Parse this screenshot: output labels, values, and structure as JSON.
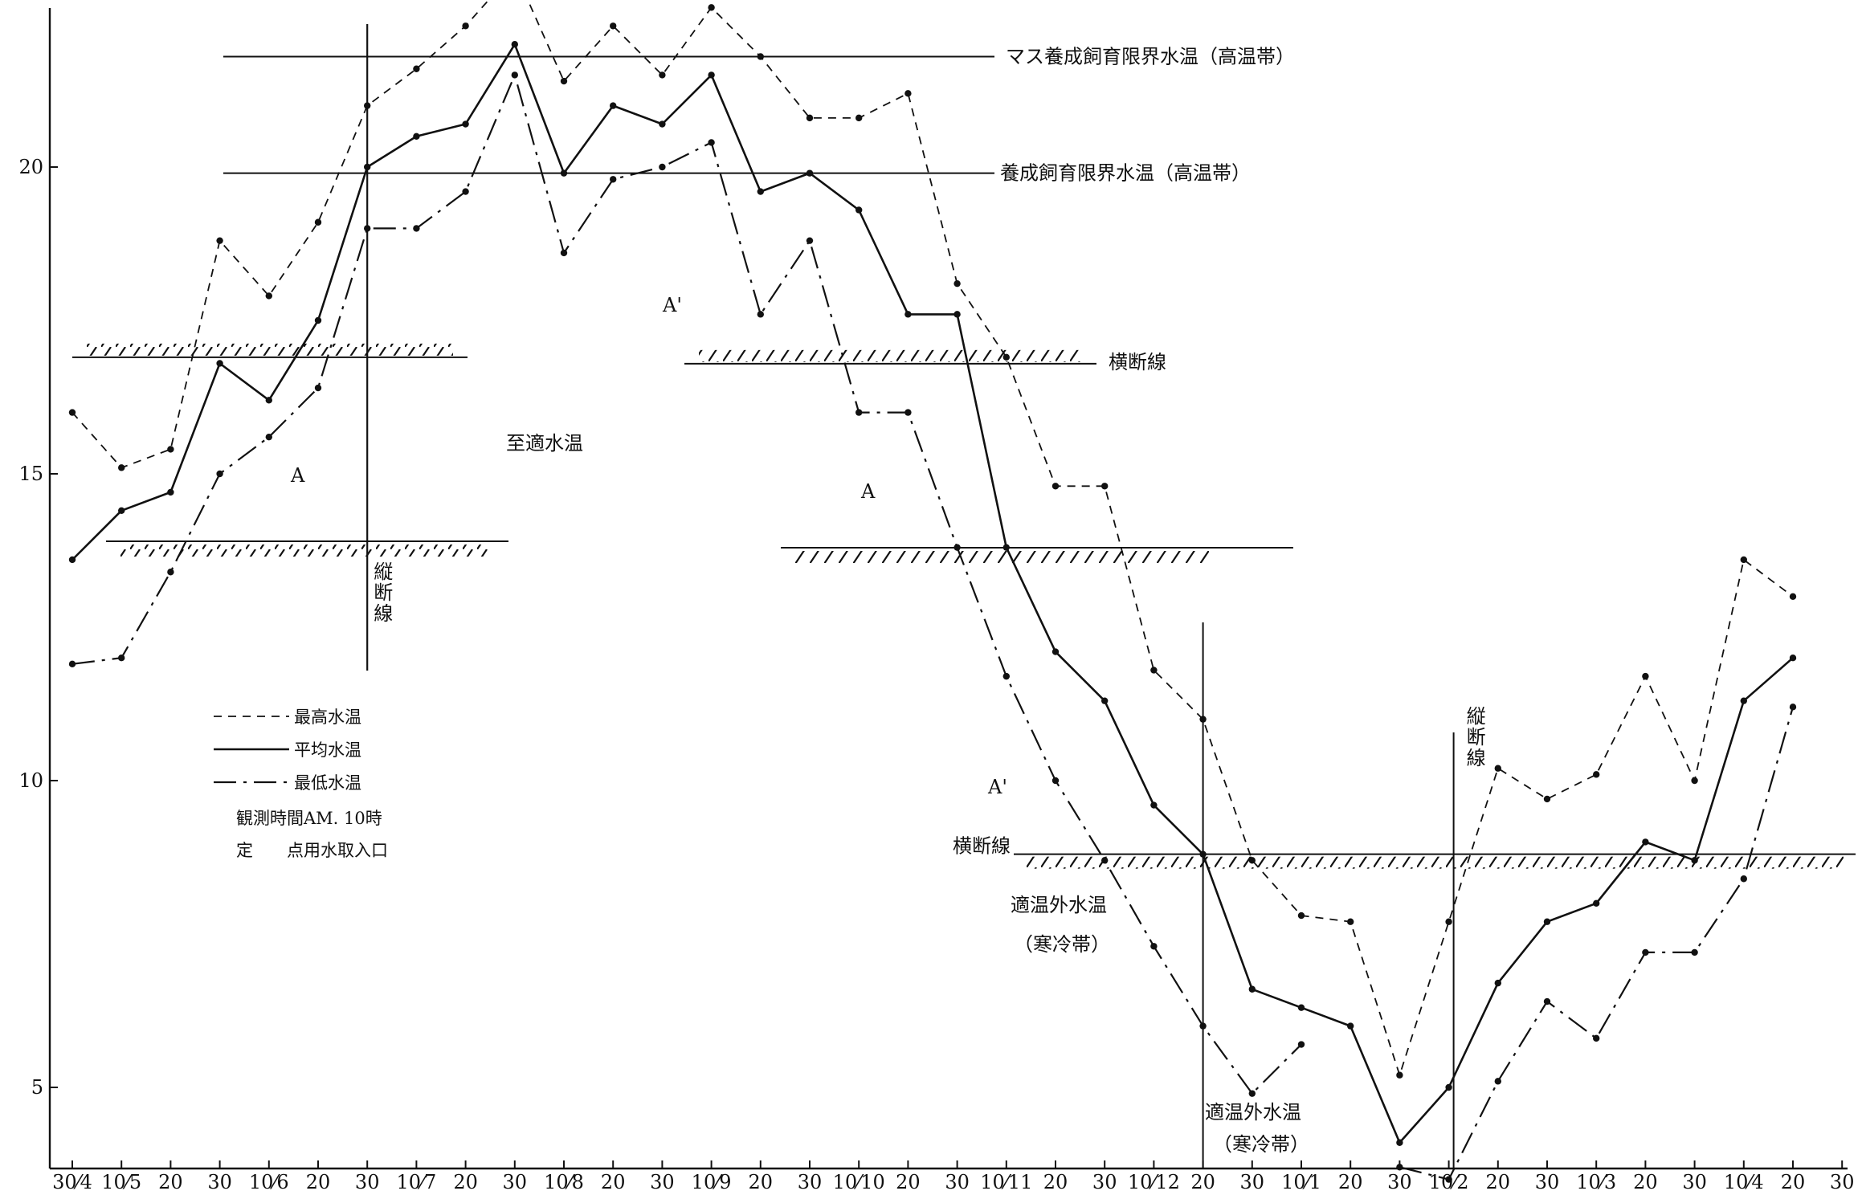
{
  "chart_data": {
    "type": "line",
    "ylim": [
      2.5,
      23.5
    ],
    "grid": false,
    "y_ticks": [
      {
        "label": "20",
        "value": 20
      },
      {
        "label": "15",
        "value": 15
      },
      {
        "label": "10",
        "value": 10
      },
      {
        "label": "5",
        "value": 5
      }
    ],
    "x_tick_labels": [
      "30⁄4",
      "10⁄5",
      "20",
      "30",
      "10⁄6",
      "20",
      "30",
      "10⁄7",
      "20",
      "30",
      "10⁄8",
      "20",
      "30",
      "10⁄9",
      "20",
      "30",
      "10⁄10",
      "20",
      "30",
      "10⁄11",
      "20",
      "30",
      "10⁄12",
      "20",
      "30",
      "10⁄1",
      "20",
      "30",
      "10⁄2",
      "20",
      "30",
      "10⁄3",
      "20",
      "30",
      "10⁄4",
      "20",
      "30"
    ],
    "series": [
      {
        "name": "最高水温",
        "style": "dashed",
        "start_index": 0,
        "values": [
          16.0,
          15.1,
          15.4,
          18.8,
          17.9,
          19.1,
          21.0,
          21.6,
          22.3,
          23.2,
          21.4,
          22.3,
          21.5,
          22.6,
          21.8,
          20.8,
          20.8,
          21.2,
          18.1,
          16.9,
          14.8,
          14.8,
          11.8,
          11.0,
          8.7,
          7.8,
          7.7,
          5.2,
          7.7,
          10.2,
          9.7,
          10.1,
          11.7,
          10.0,
          13.6,
          13.0
        ]
      },
      {
        "name": "平均水温",
        "style": "solid",
        "start_index": 0,
        "values": [
          13.6,
          14.4,
          14.7,
          16.8,
          16.2,
          17.5,
          20.0,
          20.5,
          20.7,
          22.0,
          19.9,
          21.0,
          20.7,
          21.5,
          19.6,
          19.9,
          19.3,
          17.6,
          17.6,
          13.8,
          12.1,
          11.3,
          9.6,
          8.8,
          6.6,
          6.3,
          6.0,
          4.1,
          5.0,
          6.7,
          7.7,
          8.0,
          9.0,
          8.7,
          11.3,
          12.0
        ]
      },
      {
        "name": "最低水温",
        "style": "dashdot",
        "start_index": 0,
        "values": [
          11.9,
          12.0,
          13.4,
          15.0,
          15.6,
          16.4,
          19.0,
          19.0,
          19.6,
          21.5,
          18.6,
          19.8,
          20.0,
          20.4,
          17.6,
          18.8,
          16.0,
          16.0,
          13.8,
          11.7,
          10.0,
          8.7,
          7.3,
          6.0,
          4.9,
          5.7,
          null,
          3.7,
          3.5,
          5.1,
          6.4,
          5.8,
          7.2,
          7.2,
          8.4,
          11.2
        ]
      }
    ],
    "reference_lines": [
      {
        "label": "マス養成飼育限界水温（高温帯）",
        "value": 21.8
      },
      {
        "label": "養成飼育限界水温（高温帯）",
        "value": 19.9
      },
      {
        "label": "横断線",
        "value": 16.9
      },
      {
        "label": "横断線",
        "value": 13.9
      },
      {
        "label": "横断線",
        "value": 8.8
      }
    ],
    "vertical_lines": [
      {
        "label": "縦断線",
        "x_index": 6
      },
      {
        "label": "",
        "x_index": 23
      },
      {
        "label": "縦断線",
        "x_index": 28
      }
    ],
    "annotations": {
      "optimal": "至適水温",
      "A": "A",
      "A_prime": "A'",
      "cold1": "適温外水温",
      "cold1b": "（寒冷帯）",
      "cold2": "適温外水温",
      "cold2b": "（寒冷帯）",
      "crossline": "横断線",
      "vline1": "縦断線",
      "vline2": "縦断線"
    },
    "legend": {
      "items": [
        "最高水温",
        "平均水温",
        "最低水温"
      ],
      "note1": "観測時間AM. 10時",
      "note2": "定　　点用水取入口"
    }
  }
}
